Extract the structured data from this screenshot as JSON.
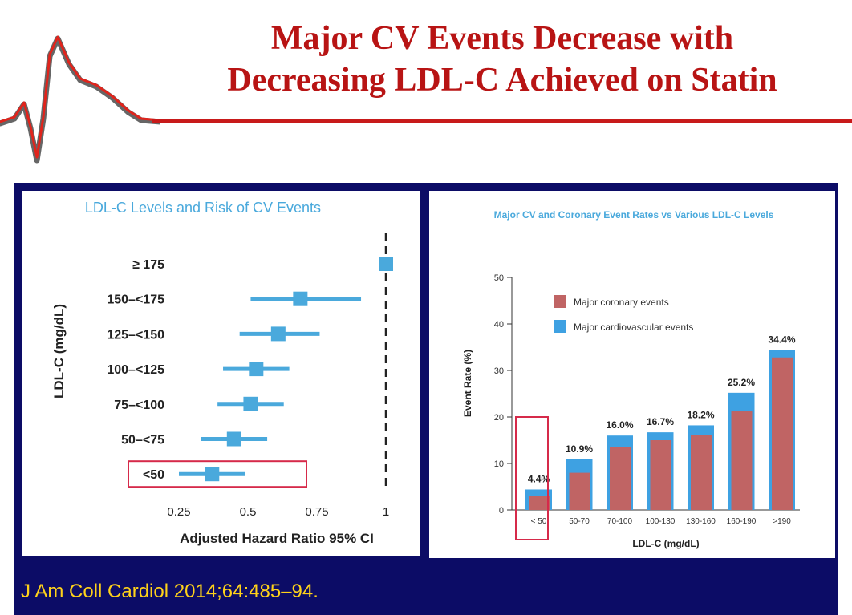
{
  "slide": {
    "title_line1": "Major CV Events Decrease with",
    "title_line2": "Decreasing LDL-C Achieved on Statin",
    "citation": "J Am Coll Cardiol 2014;64:485–94."
  },
  "colors": {
    "title": "#b81414",
    "navy": "#0c0c66",
    "forest_blue": "#4aa9dc",
    "coronary": "#c06464",
    "cardiovascular": "#3ea1e2",
    "highlight": "#d62a4a",
    "citation": "#ffd21a"
  },
  "chart_data": [
    {
      "type": "scatter",
      "title": "LDL-C Levels and Risk of CV Events",
      "xlabel": "Adjusted Hazard Ratio 95% CI",
      "ylabel": "LDL-C (mg/dL)",
      "xlim": [
        0.25,
        1
      ],
      "x_ticks": [
        "0.25",
        "0.5",
        "0.75",
        "1"
      ],
      "reference_line": 1,
      "categories": [
        "≥ 175",
        "150–<175",
        "125–<150",
        "100–<125",
        "75–<100",
        "50–<75",
        "<50"
      ],
      "series": [
        {
          "point": [
            1.0,
            0.69,
            0.61,
            0.53,
            0.51,
            0.45,
            0.37
          ],
          "lower": [
            null,
            0.51,
            0.47,
            0.41,
            0.39,
            0.33,
            0.25
          ],
          "upper": [
            null,
            0.91,
            0.76,
            0.65,
            0.63,
            0.57,
            0.49
          ]
        }
      ],
      "highlight_category": "<50",
      "grid": false
    },
    {
      "type": "bar",
      "title": "Major CV and Coronary Event Rates vs Various LDL-C Levels",
      "xlabel": "LDL-C (mg/dL)",
      "ylabel": "Event Rate (%)",
      "ylim": [
        0,
        50
      ],
      "y_ticks": [
        "0",
        "10",
        "20",
        "30",
        "40",
        "50"
      ],
      "categories": [
        "< 50",
        "50-70",
        "70-100",
        "100-130",
        "130-160",
        "160-190",
        ">190"
      ],
      "series": [
        {
          "name": "Major coronary events",
          "values": [
            3.0,
            8.0,
            13.5,
            15.0,
            16.2,
            21.2,
            32.8
          ]
        },
        {
          "name": "Major cardiovascular events",
          "values": [
            4.4,
            10.9,
            16.0,
            16.7,
            18.2,
            25.2,
            34.4
          ]
        }
      ],
      "data_labels": [
        "4.4%",
        "10.9%",
        "16.0%",
        "16.7%",
        "18.2%",
        "25.2%",
        "34.4%"
      ],
      "legend": "top-left",
      "highlight_category": "< 50",
      "grid": false
    }
  ]
}
